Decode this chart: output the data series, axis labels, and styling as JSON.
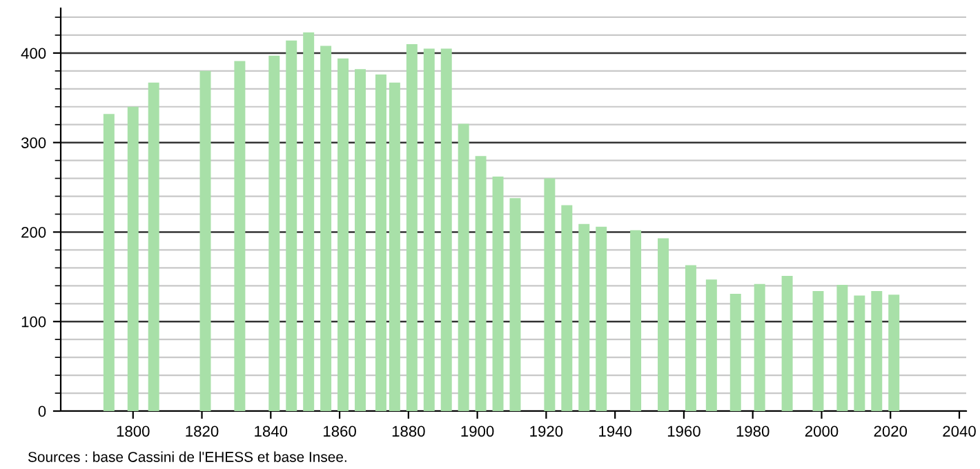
{
  "chart_data": {
    "type": "bar",
    "x": [
      1793,
      1800,
      1806,
      1821,
      1831,
      1841,
      1846,
      1851,
      1856,
      1861,
      1866,
      1872,
      1876,
      1881,
      1886,
      1891,
      1896,
      1901,
      1906,
      1911,
      1921,
      1926,
      1931,
      1936,
      1946,
      1954,
      1962,
      1968,
      1975,
      1982,
      1990,
      1999,
      2006,
      2011,
      2016,
      2021
    ],
    "values": [
      332,
      340,
      367,
      380,
      391,
      397,
      414,
      423,
      408,
      394,
      382,
      376,
      367,
      410,
      405,
      405,
      321,
      285,
      262,
      238,
      260,
      230,
      209,
      206,
      202,
      193,
      163,
      147,
      131,
      142,
      151,
      134,
      141,
      129,
      134,
      130
    ],
    "color": "#a8e0a8",
    "xlim": [
      1779,
      2042
    ],
    "xticks": [
      1800,
      1820,
      1840,
      1860,
      1880,
      1900,
      1920,
      1940,
      1960,
      1980,
      2000,
      2020,
      2040
    ],
    "ylim": [
      0,
      450
    ],
    "yticks": [
      0,
      100,
      200,
      300,
      400
    ],
    "grid": "y",
    "annotations": [
      "Sources : base Cassini de l'EHESS et base Insee."
    ]
  }
}
